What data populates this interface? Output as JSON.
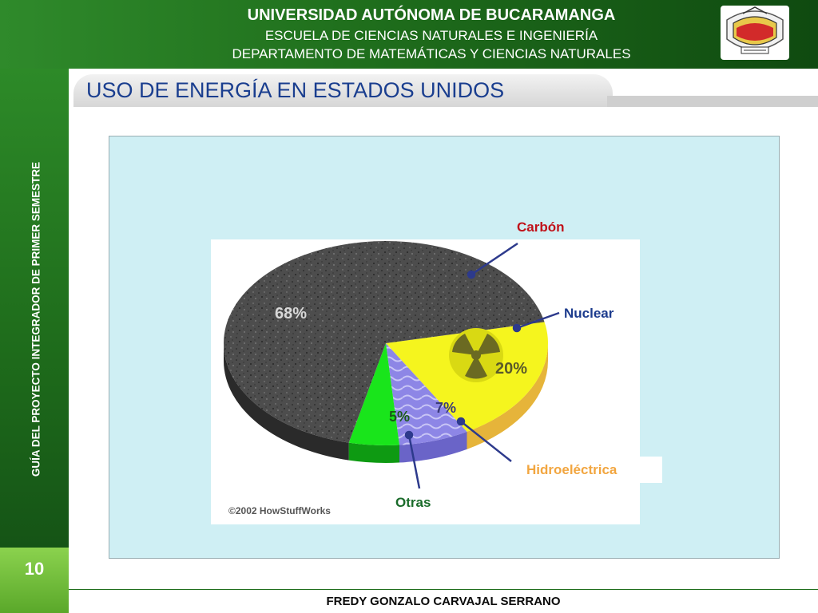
{
  "header": {
    "university": "UNIVERSIDAD AUTÓNOMA DE BUCARAMANGA",
    "school": "ESCUELA DE CIENCIAS NATURALES E INGENIERÍA",
    "department": "DEPARTAMENTO DE MATEMÁTICAS Y CIENCIAS NATURALES"
  },
  "sidebar": {
    "text": "GUÍA DEL PROYECTO INTEGRADOR DE PRIMER SEMESTRE"
  },
  "page_number": "10",
  "slide_title": "USO DE ENERGÍA EN ESTADOS UNIDOS",
  "footer": "FREDY GONZALO CARVAJAL SERRANO",
  "credit": "©2002 HowStuffWorks",
  "chart_data": {
    "type": "pie",
    "title": "",
    "slices": [
      {
        "name": "Carbón",
        "value": 68,
        "label": "68%",
        "color": "#555555"
      },
      {
        "name": "Nuclear",
        "value": 20,
        "label": "20%",
        "color": "#f5f51e"
      },
      {
        "name": "Hidroeléctrica",
        "value": 7,
        "label": "7%",
        "color": "#8d86e6"
      },
      {
        "name": "Otras",
        "value": 5,
        "label": "5%",
        "color": "#19e51b"
      }
    ],
    "category_label_colors": {
      "Carbón": "#c0121a",
      "Nuclear": "#1c3b8d",
      "Hidroeléctrica": "#f2a640",
      "Otras": "#1a6b2a"
    }
  }
}
